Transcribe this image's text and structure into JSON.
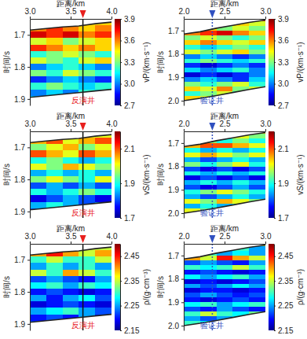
{
  "chart_data": [
    {
      "type": "heatmap",
      "x_label": "距离/km",
      "y_label": "时间/s",
      "xlim": [
        3,
        4
      ],
      "xticks": [
        {
          "value": 3,
          "label": "3.0"
        },
        3.5,
        {
          "value": 4,
          "label": "4.0"
        }
      ],
      "ylim": [
        1.65,
        1.92
      ],
      "yticks": [
        1.7,
        1.8,
        1.9
      ],
      "xbins": [
        3.0,
        3.2,
        3.4,
        3.6,
        3.8,
        4.0
      ],
      "ybins": [
        1.65,
        1.67,
        1.69,
        1.71,
        1.73,
        1.75,
        1.77,
        1.79,
        1.81,
        1.83,
        1.85,
        1.87,
        1.89,
        1.91,
        1.93
      ],
      "cells": [
        [
          3.5,
          3.5,
          3.5,
          3.5,
          3.5
        ],
        [
          3.6,
          3.7,
          3.6,
          3.5,
          3.6
        ],
        [
          3.8,
          3.7,
          3.8,
          3.6,
          3.7
        ],
        [
          3.4,
          3.5,
          3.3,
          3.4,
          3.5
        ],
        [
          3.7,
          3.6,
          3.5,
          3.6,
          3.5
        ],
        [
          3.2,
          3.3,
          3.4,
          3.3,
          3.2
        ],
        [
          3.4,
          3.3,
          3.2,
          3.4,
          3.5
        ],
        [
          3.0,
          3.1,
          3.2,
          3.1,
          3.0
        ],
        [
          3.3,
          3.2,
          3.4,
          3.3,
          3.2
        ],
        [
          2.9,
          3.0,
          3.1,
          3.0,
          2.9
        ],
        [
          3.2,
          3.3,
          3.2,
          3.1,
          3.2
        ],
        [
          3.0,
          3.1,
          3.0,
          3.2,
          3.1
        ],
        [
          3.1,
          3.1,
          3.1,
          3.1,
          3.1
        ],
        [
          3.1,
          3.1,
          3.1,
          3.1,
          3.1
        ]
      ],
      "colorbar": {
        "label": "vP/(km·s⁻¹)",
        "range": [
          2.7,
          3.9
        ],
        "ticks": [
          2.7,
          {
            "value": 3,
            "label": "3.0"
          },
          3.3,
          3.6,
          3.9
        ]
      },
      "horizons": {
        "x": [
          3.0,
          3.2,
          3.4,
          3.6,
          3.8,
          4.0
        ],
        "top": [
          1.685,
          1.68,
          1.675,
          1.672,
          1.665,
          1.66
        ],
        "bottom": [
          1.895,
          1.89,
          1.885,
          1.88,
          1.875,
          1.87
        ]
      },
      "well": {
        "x": 3.65,
        "label": "反演井",
        "color": "#e8201e",
        "line_style": "solid"
      }
    },
    {
      "type": "heatmap",
      "x_label": "距离/km",
      "y_label": "时间/s",
      "xlim": [
        2,
        3
      ],
      "xticks": [
        {
          "value": 2,
          "label": "2.0"
        },
        2.5,
        {
          "value": 3,
          "label": "3.0"
        }
      ],
      "ylim": [
        1.65,
        2.02
      ],
      "yticks": [
        1.7,
        1.8,
        1.9,
        {
          "value": 2,
          "label": "2.0"
        }
      ],
      "xbins": [
        2.0,
        2.2,
        2.4,
        2.6,
        2.8,
        3.0
      ],
      "ybins": [
        1.64,
        1.66,
        1.68,
        1.7,
        1.72,
        1.74,
        1.76,
        1.78,
        1.8,
        1.82,
        1.84,
        1.86,
        1.88,
        1.9,
        1.92,
        1.94,
        1.96,
        1.98,
        2.0,
        2.02
      ],
      "cells": [
        [
          3.6,
          3.6,
          3.6,
          3.7,
          3.7
        ],
        [
          3.6,
          3.5,
          3.6,
          3.5,
          3.4
        ],
        [
          3.4,
          3.5,
          3.3,
          3.4,
          3.3
        ],
        [
          3.6,
          3.7,
          3.8,
          3.6,
          3.5
        ],
        [
          3.3,
          3.4,
          3.3,
          3.2,
          3.3
        ],
        [
          3.5,
          3.6,
          3.5,
          3.4,
          3.5
        ],
        [
          3.2,
          3.1,
          3.2,
          3.3,
          3.2
        ],
        [
          3.4,
          3.3,
          3.4,
          3.5,
          3.3
        ],
        [
          3.0,
          3.1,
          3.0,
          2.9,
          3.0
        ],
        [
          3.2,
          3.3,
          3.2,
          3.1,
          3.2
        ],
        [
          2.9,
          2.8,
          2.9,
          3.0,
          2.9
        ],
        [
          3.1,
          3.0,
          3.1,
          3.2,
          3.0
        ],
        [
          2.8,
          2.9,
          2.8,
          2.9,
          3.0
        ],
        [
          3.0,
          3.1,
          3.0,
          2.9,
          3.1
        ],
        [
          3.3,
          3.2,
          3.3,
          3.4,
          3.2
        ],
        [
          3.5,
          3.4,
          3.6,
          3.3,
          3.4
        ],
        [
          3.2,
          3.3,
          3.4,
          3.2,
          3.3
        ],
        [
          3.5,
          3.4,
          3.3,
          3.4,
          3.4
        ],
        [
          3.3,
          3.3,
          3.3,
          3.3,
          3.3
        ]
      ],
      "colorbar": {
        "label": "vP/(km·s⁻¹)",
        "range": [
          2.7,
          3.9
        ],
        "ticks": [
          2.7,
          {
            "value": 3,
            "label": "3.0"
          },
          3.3,
          3.6,
          3.9
        ]
      },
      "horizons": {
        "x": [
          2.0,
          2.2,
          2.4,
          2.6,
          2.8,
          3.0
        ],
        "top": [
          1.715,
          1.705,
          1.69,
          1.678,
          1.665,
          1.655
        ],
        "bottom": [
          2.0,
          1.99,
          1.978,
          1.965,
          1.952,
          1.94
        ]
      },
      "well": {
        "x": 2.35,
        "label": "验证井",
        "color": "#3050c0",
        "line_style": "dotted"
      }
    },
    {
      "type": "heatmap",
      "x_label": "距离/km",
      "y_label": "时间/s",
      "xlim": [
        3,
        4
      ],
      "xticks": [
        {
          "value": 3,
          "label": "3.0"
        },
        3.5,
        {
          "value": 4,
          "label": "4.0"
        }
      ],
      "ylim": [
        1.65,
        1.92
      ],
      "yticks": [
        1.7,
        1.8,
        1.9
      ],
      "xbins": [
        3.0,
        3.2,
        3.4,
        3.6,
        3.8,
        4.0
      ],
      "ybins": [
        1.65,
        1.67,
        1.69,
        1.71,
        1.73,
        1.75,
        1.77,
        1.79,
        1.81,
        1.83,
        1.85,
        1.87,
        1.89,
        1.91,
        1.93
      ],
      "cells": [
        [
          2.0,
          2.0,
          2.0,
          2.0,
          2.0
        ],
        [
          2.05,
          2.1,
          2.0,
          2.05,
          2.1
        ],
        [
          1.95,
          2.0,
          2.05,
          1.95,
          2.0
        ],
        [
          2.1,
          2.05,
          2.0,
          2.1,
          2.05
        ],
        [
          1.9,
          1.95,
          1.9,
          1.85,
          1.9
        ],
        [
          2.0,
          1.95,
          2.05,
          2.0,
          1.95
        ],
        [
          1.85,
          1.9,
          1.85,
          1.9,
          1.85
        ],
        [
          1.95,
          2.0,
          1.95,
          1.9,
          2.0
        ],
        [
          1.8,
          1.85,
          1.8,
          1.85,
          1.8
        ],
        [
          1.9,
          1.85,
          1.9,
          1.95,
          1.9
        ],
        [
          1.75,
          1.8,
          1.85,
          1.8,
          1.75
        ],
        [
          1.85,
          1.9,
          1.85,
          1.8,
          1.85
        ],
        [
          1.8,
          1.8,
          1.8,
          1.8,
          1.8
        ],
        [
          1.8,
          1.8,
          1.8,
          1.8,
          1.8
        ]
      ],
      "colorbar": {
        "label": "vS/(km·s⁻¹)",
        "range": [
          1.7,
          2.2
        ],
        "ticks": [
          1.7,
          1.9,
          2.1
        ]
      },
      "horizons": {
        "x": [
          3.0,
          3.2,
          3.4,
          3.6,
          3.8,
          4.0
        ],
        "top": [
          1.685,
          1.68,
          1.675,
          1.672,
          1.665,
          1.66
        ],
        "bottom": [
          1.895,
          1.89,
          1.885,
          1.88,
          1.875,
          1.87
        ]
      },
      "well": {
        "x": 3.65,
        "label": "反演井",
        "color": "#e8201e",
        "line_style": "solid"
      }
    },
    {
      "type": "heatmap",
      "x_label": "距离/km",
      "y_label": "时间/s",
      "xlim": [
        2,
        3
      ],
      "xticks": [
        {
          "value": 2,
          "label": "2.0"
        },
        2.5,
        {
          "value": 3,
          "label": "3.0"
        }
      ],
      "ylim": [
        1.65,
        2.02
      ],
      "yticks": [
        1.7,
        1.8,
        1.9,
        {
          "value": 2,
          "label": "2.0"
        }
      ],
      "xbins": [
        2.0,
        2.2,
        2.4,
        2.6,
        2.8,
        3.0
      ],
      "ybins": [
        1.64,
        1.66,
        1.68,
        1.7,
        1.72,
        1.74,
        1.76,
        1.78,
        1.8,
        1.82,
        1.84,
        1.86,
        1.88,
        1.9,
        1.92,
        1.94,
        1.96,
        1.98,
        2.0,
        2.02
      ],
      "cells": [
        [
          2.0,
          2.0,
          2.0,
          2.05,
          2.05
        ],
        [
          2.05,
          2.0,
          2.05,
          2.0,
          1.95
        ],
        [
          1.9,
          1.95,
          1.9,
          1.95,
          1.9
        ],
        [
          2.05,
          2.1,
          2.1,
          2.05,
          2.0
        ],
        [
          1.9,
          1.85,
          1.9,
          1.85,
          1.9
        ],
        [
          2.0,
          2.05,
          2.0,
          1.95,
          2.0
        ],
        [
          1.85,
          1.8,
          1.85,
          1.9,
          1.85
        ],
        [
          1.95,
          1.9,
          1.95,
          2.0,
          1.9
        ],
        [
          1.8,
          1.75,
          1.8,
          1.75,
          1.8
        ],
        [
          1.9,
          1.85,
          1.9,
          1.85,
          1.9
        ],
        [
          1.75,
          1.8,
          1.75,
          1.8,
          1.75
        ],
        [
          1.85,
          1.9,
          1.85,
          1.9,
          1.85
        ],
        [
          1.8,
          1.75,
          1.8,
          1.85,
          1.8
        ],
        [
          1.9,
          1.95,
          2.0,
          1.95,
          1.9
        ],
        [
          1.85,
          1.8,
          1.85,
          1.9,
          1.85
        ],
        [
          2.0,
          1.95,
          2.05,
          2.0,
          1.95
        ],
        [
          1.85,
          1.9,
          1.85,
          1.9,
          1.95
        ],
        [
          2.0,
          1.95,
          1.9,
          1.95,
          2.0
        ],
        [
          1.9,
          1.9,
          1.9,
          1.9,
          1.9
        ]
      ],
      "colorbar": {
        "label": "vS/(km·s⁻¹)",
        "range": [
          1.7,
          2.2
        ],
        "ticks": [
          1.7,
          1.9,
          2.1
        ]
      },
      "horizons": {
        "x": [
          2.0,
          2.2,
          2.4,
          2.6,
          2.8,
          3.0
        ],
        "top": [
          1.715,
          1.705,
          1.69,
          1.678,
          1.665,
          1.655
        ],
        "bottom": [
          2.0,
          1.99,
          1.978,
          1.965,
          1.952,
          1.94
        ]
      },
      "well": {
        "x": 2.35,
        "label": "验证井",
        "color": "#3050c0",
        "line_style": "dotted"
      }
    },
    {
      "type": "heatmap",
      "x_label": "距离/km",
      "y_label": "时间/s",
      "xlim": [
        3,
        4
      ],
      "xticks": [
        {
          "value": 3,
          "label": "3.0"
        },
        3.5,
        {
          "value": 4,
          "label": "4.0"
        }
      ],
      "ylim": [
        1.65,
        1.92
      ],
      "yticks": [
        1.7,
        1.8,
        1.9
      ],
      "xbins": [
        3.0,
        3.2,
        3.4,
        3.6,
        3.8,
        4.0
      ],
      "ybins": [
        1.65,
        1.67,
        1.69,
        1.71,
        1.73,
        1.75,
        1.77,
        1.79,
        1.81,
        1.83,
        1.85,
        1.87,
        1.89,
        1.91,
        1.93
      ],
      "cells": [
        [
          2.35,
          2.35,
          2.35,
          2.35,
          2.35
        ],
        [
          2.4,
          2.45,
          2.4,
          2.35,
          2.4
        ],
        [
          2.3,
          2.35,
          2.3,
          2.3,
          2.35
        ],
        [
          2.25,
          2.3,
          2.25,
          2.3,
          2.25
        ],
        [
          2.35,
          2.3,
          2.4,
          2.35,
          2.3
        ],
        [
          2.22,
          2.25,
          2.22,
          2.2,
          2.25
        ],
        [
          2.28,
          2.3,
          2.25,
          2.3,
          2.28
        ],
        [
          2.2,
          2.22,
          2.2,
          2.18,
          2.2
        ],
        [
          2.25,
          2.2,
          2.25,
          2.28,
          2.22
        ],
        [
          2.18,
          2.2,
          2.22,
          2.2,
          2.18
        ],
        [
          2.25,
          2.28,
          2.3,
          2.25,
          2.22
        ],
        [
          2.2,
          2.22,
          2.2,
          2.25,
          2.2
        ],
        [
          2.22,
          2.22,
          2.22,
          2.22,
          2.22
        ],
        [
          2.22,
          2.22,
          2.22,
          2.22,
          2.22
        ]
      ],
      "colorbar": {
        "label": "ρ/(g·cm⁻³)",
        "range": [
          2.15,
          2.5
        ],
        "ticks": [
          2.15,
          2.25,
          2.35,
          2.45
        ]
      },
      "horizons": {
        "x": [
          3.0,
          3.2,
          3.4,
          3.6,
          3.8,
          4.0
        ],
        "top": [
          1.685,
          1.68,
          1.675,
          1.672,
          1.665,
          1.66
        ],
        "bottom": [
          1.895,
          1.89,
          1.885,
          1.88,
          1.875,
          1.87
        ]
      },
      "well": {
        "x": 3.65,
        "label": "反演井",
        "color": "#e8201e",
        "line_style": "solid"
      }
    },
    {
      "type": "heatmap",
      "x_label": "距离/km",
      "y_label": "时间/s",
      "xlim": [
        2,
        3
      ],
      "xticks": [
        {
          "value": 2,
          "label": "2.0"
        },
        2.5,
        {
          "value": 3,
          "label": "3.0"
        }
      ],
      "ylim": [
        1.65,
        2.02
      ],
      "yticks": [
        1.7,
        1.8,
        1.9,
        {
          "value": 2,
          "label": "2.0"
        }
      ],
      "xbins": [
        2.0,
        2.2,
        2.4,
        2.6,
        2.8,
        3.0
      ],
      "ybins": [
        1.64,
        1.66,
        1.68,
        1.7,
        1.72,
        1.74,
        1.76,
        1.78,
        1.8,
        1.82,
        1.84,
        1.86,
        1.88,
        1.9,
        1.92,
        1.94,
        1.96,
        1.98,
        2.0,
        2.02
      ],
      "cells": [
        [
          2.3,
          2.3,
          2.35,
          2.35,
          2.35
        ],
        [
          2.35,
          2.3,
          2.35,
          2.3,
          2.25
        ],
        [
          2.25,
          2.3,
          2.25,
          2.28,
          2.25
        ],
        [
          2.4,
          2.35,
          2.45,
          2.4,
          2.35
        ],
        [
          2.22,
          2.25,
          2.22,
          2.2,
          2.25
        ],
        [
          2.3,
          2.28,
          2.3,
          2.35,
          2.3
        ],
        [
          2.2,
          2.22,
          2.2,
          2.18,
          2.2
        ],
        [
          2.28,
          2.25,
          2.28,
          2.3,
          2.25
        ],
        [
          2.18,
          2.2,
          2.18,
          2.2,
          2.22
        ],
        [
          2.25,
          2.22,
          2.25,
          2.28,
          2.25
        ],
        [
          2.18,
          2.2,
          2.2,
          2.18,
          2.2
        ],
        [
          2.22,
          2.25,
          2.22,
          2.2,
          2.22
        ],
        [
          2.2,
          2.18,
          2.2,
          2.22,
          2.2
        ],
        [
          2.28,
          2.3,
          2.25,
          2.28,
          2.3
        ],
        [
          2.22,
          2.2,
          2.25,
          2.22,
          2.2
        ],
        [
          2.3,
          2.35,
          2.3,
          2.28,
          2.32
        ],
        [
          2.25,
          2.22,
          2.25,
          2.28,
          2.25
        ],
        [
          2.3,
          2.28,
          2.3,
          2.32,
          2.3
        ],
        [
          2.25,
          2.25,
          2.25,
          2.25,
          2.25
        ]
      ],
      "colorbar": {
        "label": "ρ/(g·cm⁻³)",
        "range": [
          2.15,
          2.5
        ],
        "ticks": [
          2.15,
          2.25,
          2.35,
          2.45
        ]
      },
      "horizons": {
        "x": [
          2.0,
          2.2,
          2.4,
          2.6,
          2.8,
          3.0
        ],
        "top": [
          1.715,
          1.705,
          1.69,
          1.678,
          1.665,
          1.655
        ],
        "bottom": [
          2.0,
          1.99,
          1.978,
          1.965,
          1.952,
          1.94
        ]
      },
      "well": {
        "x": 2.35,
        "label": "验证井",
        "color": "#3050c0",
        "line_style": "dotted"
      }
    }
  ]
}
